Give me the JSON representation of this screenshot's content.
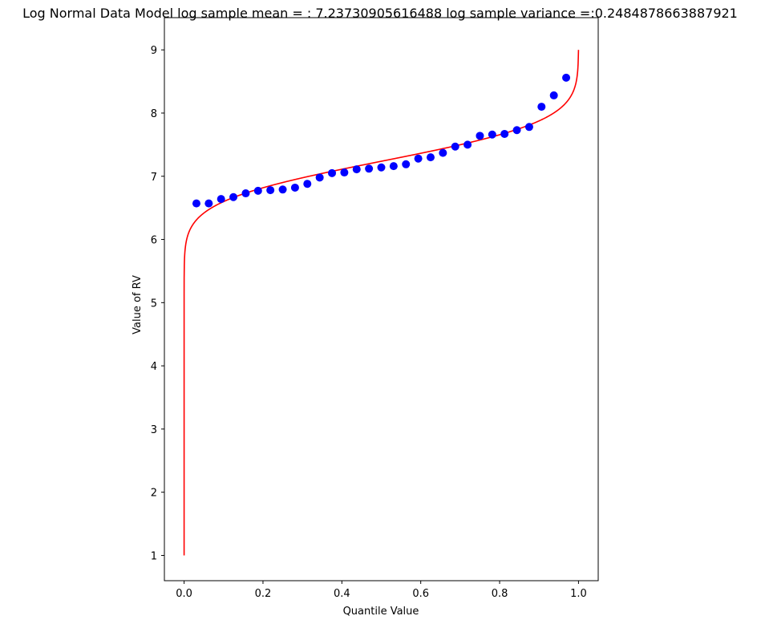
{
  "chart_data": {
    "type": "scatter",
    "title": "Log Normal Data Model log sample mean = : 7.23730905616488 log sample variance  =:0.2484878663887921",
    "xlabel": "Quantile Value",
    "ylabel": "Value of RV",
    "xlim": [
      -0.05,
      1.05
    ],
    "ylim": [
      0.6,
      9.51
    ],
    "xticks": [
      "0.0",
      "0.2",
      "0.4",
      "0.6",
      "0.8",
      "1.0"
    ],
    "yticks": [
      "1",
      "2",
      "3",
      "4",
      "5",
      "6",
      "7",
      "8",
      "9"
    ],
    "grid": false,
    "series": [
      {
        "kind": "points",
        "color": "#0000ff",
        "x": [
          0.03125,
          0.0625,
          0.09375,
          0.125,
          0.15625,
          0.1875,
          0.21875,
          0.25,
          0.28125,
          0.3125,
          0.34375,
          0.375,
          0.40625,
          0.4375,
          0.46875,
          0.5,
          0.53125,
          0.5625,
          0.59375,
          0.625,
          0.65625,
          0.6875,
          0.71875,
          0.75,
          0.78125,
          0.8125,
          0.84375,
          0.875,
          0.90625,
          0.9375,
          0.96875
        ],
        "y": [
          6.57,
          6.57,
          6.64,
          6.67,
          6.73,
          6.77,
          6.78,
          6.79,
          6.82,
          6.88,
          6.98,
          7.05,
          7.06,
          7.11,
          7.12,
          7.14,
          7.16,
          7.19,
          7.28,
          7.3,
          7.37,
          7.47,
          7.5,
          7.64,
          7.66,
          7.67,
          7.73,
          7.78,
          8.1,
          8.28,
          8.56
        ]
      },
      {
        "kind": "normal-quantile-line",
        "color": "#ff0000",
        "mean": 7.23730905616488,
        "variance": 0.2484878663887921,
        "y_range": [
          1,
          9
        ]
      }
    ]
  }
}
